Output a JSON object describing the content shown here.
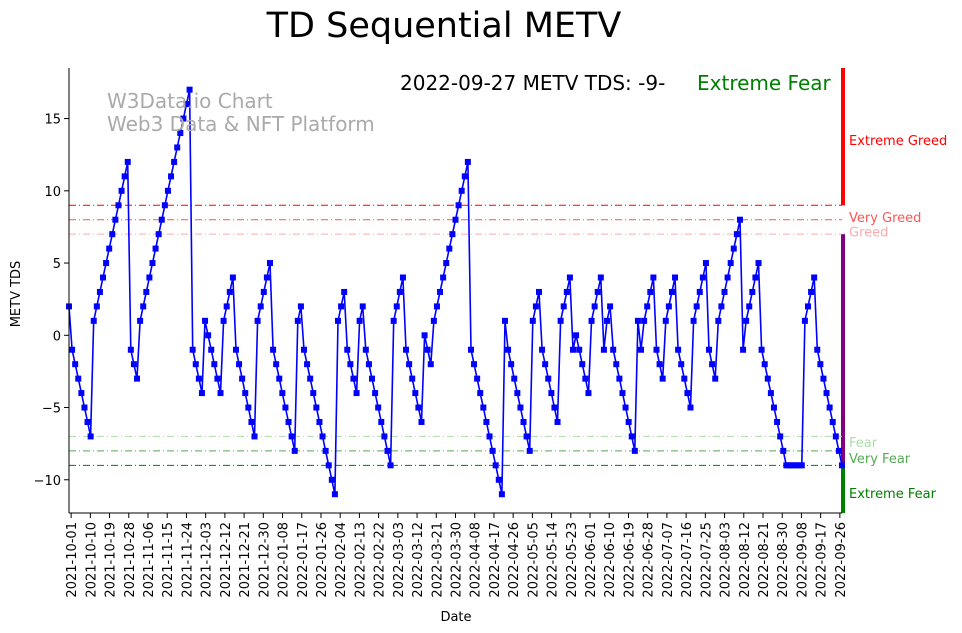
{
  "chart_data": {
    "type": "line",
    "title": "TD Sequential METV",
    "xlabel": "Date",
    "ylabel": "METV TDS",
    "ylim": [
      -12.3,
      18.5
    ],
    "x_start": "2021-09-30",
    "x_end": "2022-09-27",
    "grid": false,
    "x_tick_labels": [
      "2021-10-01",
      "2021-10-10",
      "2021-10-19",
      "2021-10-28",
      "2021-11-06",
      "2021-11-15",
      "2021-11-24",
      "2021-12-03",
      "2021-12-12",
      "2021-12-21",
      "2021-12-30",
      "2022-01-08",
      "2022-01-17",
      "2022-01-26",
      "2022-02-04",
      "2022-02-13",
      "2022-02-22",
      "2022-03-03",
      "2022-03-12",
      "2022-03-21",
      "2022-03-30",
      "2022-04-08",
      "2022-04-17",
      "2022-04-26",
      "2022-05-05",
      "2022-05-14",
      "2022-05-23",
      "2022-06-01",
      "2022-06-10",
      "2022-06-19",
      "2022-06-28",
      "2022-07-07",
      "2022-07-16",
      "2022-07-25",
      "2022-08-03",
      "2022-08-12",
      "2022-08-21",
      "2022-08-30",
      "2022-09-08",
      "2022-09-17",
      "2022-09-26"
    ],
    "y_ticks": [
      15,
      10,
      5,
      0,
      -5,
      -10
    ],
    "y_tick_labels": [
      "15",
      "10",
      "5",
      "0",
      "−5",
      "−10"
    ],
    "series": [
      {
        "color": "#0000ff",
        "marker": "square",
        "values": [
          2,
          -1,
          -2,
          -3,
          -4,
          -5,
          -6,
          -7,
          1,
          2,
          3,
          4,
          5,
          6,
          7,
          8,
          9,
          10,
          11,
          12,
          -1,
          -2,
          -3,
          1,
          2,
          3,
          4,
          5,
          6,
          7,
          8,
          9,
          10,
          11,
          12,
          13,
          14,
          15,
          16,
          17,
          -1,
          -2,
          -3,
          -4,
          1,
          0,
          -1,
          -2,
          -3,
          -4,
          1,
          2,
          3,
          4,
          -1,
          -2,
          -3,
          -4,
          -5,
          -6,
          -7,
          1,
          2,
          3,
          4,
          5,
          -1,
          -2,
          -3,
          -4,
          -5,
          -6,
          -7,
          -8,
          1,
          2,
          -1,
          -2,
          -3,
          -4,
          -5,
          -6,
          -7,
          -8,
          -9,
          -10,
          -11,
          1,
          2,
          3,
          -1,
          -2,
          -3,
          -4,
          1,
          2,
          -1,
          -2,
          -3,
          -4,
          -5,
          -6,
          -7,
          -8,
          -9,
          1,
          2,
          3,
          4,
          -1,
          -2,
          -3,
          -4,
          -5,
          -6,
          0,
          -1,
          -2,
          1,
          2,
          3,
          4,
          5,
          6,
          7,
          8,
          9,
          10,
          11,
          12,
          -1,
          -2,
          -3,
          -4,
          -5,
          -6,
          -7,
          -8,
          -9,
          -10,
          -11,
          1,
          -1,
          -2,
          -3,
          -4,
          -5,
          -6,
          -7,
          -8,
          1,
          2,
          3,
          -1,
          -2,
          -3,
          -4,
          -5,
          -6,
          1,
          2,
          3,
          4,
          -1,
          0,
          -1,
          -2,
          -3,
          -4,
          1,
          2,
          3,
          4,
          -1,
          1,
          2,
          -1,
          -2,
          -3,
          -4,
          -5,
          -6,
          -7,
          -8,
          1,
          -1,
          1,
          2,
          3,
          4,
          -1,
          -2,
          -3,
          1,
          2,
          3,
          4,
          -1,
          -2,
          -3,
          -4,
          -5,
          1,
          2,
          3,
          4,
          5,
          -1,
          -2,
          -3,
          1,
          2,
          3,
          4,
          5,
          6,
          7,
          8,
          -1,
          1,
          2,
          3,
          4,
          5,
          -1,
          -2,
          -3,
          -4,
          -5,
          -6,
          -7,
          -8,
          -9,
          -9,
          -9,
          -9,
          -9,
          -9,
          1,
          2,
          3,
          4,
          -1,
          -2,
          -3,
          -4,
          -5,
          -6,
          -7,
          -8,
          -9
        ]
      }
    ],
    "reference_lines": [
      {
        "y": 9,
        "color": "#ff0000"
      },
      {
        "y": 8,
        "color": "#ff5555"
      },
      {
        "y": 7,
        "color": "#ffaaaa"
      },
      {
        "y": -7,
        "color": "#aaddaa"
      },
      {
        "y": -8,
        "color": "#55aa55"
      },
      {
        "y": -9,
        "color": "#008000"
      }
    ],
    "zone_bar": [
      {
        "from": 9,
        "to": 18.5,
        "color": "#ff0000"
      },
      {
        "from": -9,
        "to": 7,
        "color": "#800080"
      },
      {
        "from": -12.3,
        "to": -9,
        "color": "#008000"
      }
    ],
    "zone_labels": [
      {
        "text": "Extreme Greed",
        "y": 13.5,
        "color": "#ff0000"
      },
      {
        "text": "Very Greed",
        "y": 8.2,
        "color": "#ff5555"
      },
      {
        "text": "Greed",
        "y": 7.2,
        "color": "#ffaaaa"
      },
      {
        "text": "Fear",
        "y": -7.4,
        "color": "#aaddaa"
      },
      {
        "text": "Very Fear",
        "y": -8.5,
        "color": "#55aa55"
      },
      {
        "text": "Extreme Fear",
        "y": -10.9,
        "color": "#008000"
      }
    ],
    "status": {
      "label": "2022-09-27 METV TDS: -9-",
      "value": "Extreme Fear",
      "value_color": "#008000"
    },
    "watermark": [
      "W3Data.io Chart",
      "Web3 Data & NFT Platform"
    ]
  }
}
